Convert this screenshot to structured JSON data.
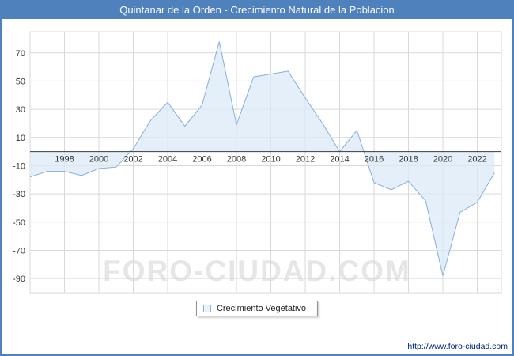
{
  "header": {
    "title": "Quintanar de la Orden - Crecimiento Natural de la Poblacion"
  },
  "watermark": "FORO-CIUDAD.COM",
  "legend": {
    "label": "Crecimiento Vegetativo"
  },
  "footer": {
    "url": "http://www.foro-ciudad.com"
  },
  "chart_data": {
    "type": "area",
    "title": "Quintanar de la Orden - Crecimiento Natural de la Poblacion",
    "series_name": "Crecimiento Vegetativo",
    "x": [
      1996,
      1997,
      1998,
      1999,
      2000,
      2001,
      2002,
      2003,
      2004,
      2005,
      2006,
      2007,
      2008,
      2009,
      2010,
      2011,
      2012,
      2013,
      2014,
      2015,
      2016,
      2017,
      2018,
      2019,
      2020,
      2021,
      2022,
      2023
    ],
    "values": [
      -18,
      -14,
      -14,
      -17,
      -12,
      -11,
      2,
      22,
      35,
      18,
      33,
      78,
      19,
      53,
      55,
      57,
      38,
      20,
      0,
      15,
      -22,
      -27,
      -21,
      -35,
      -88,
      -43,
      -36,
      -15
    ],
    "xticks": [
      1998,
      2000,
      2002,
      2004,
      2006,
      2008,
      2010,
      2012,
      2014,
      2016,
      2018,
      2020,
      2022
    ],
    "yticks": [
      70,
      50,
      30,
      10,
      -10,
      -30,
      -50,
      -70,
      -90
    ],
    "xlim": [
      1996,
      2023.4
    ],
    "ylim": [
      -100,
      85
    ],
    "baseline": 0,
    "grid": true,
    "legend_position": "bottom",
    "xlabel": "",
    "ylabel": "",
    "colors": {
      "accent": "#4f81bd",
      "fill": "#dce9f7",
      "stroke": "#86aede",
      "grid": "#d9d9d9",
      "axis": "#3a3a3a",
      "tick_text": "#333333"
    }
  }
}
